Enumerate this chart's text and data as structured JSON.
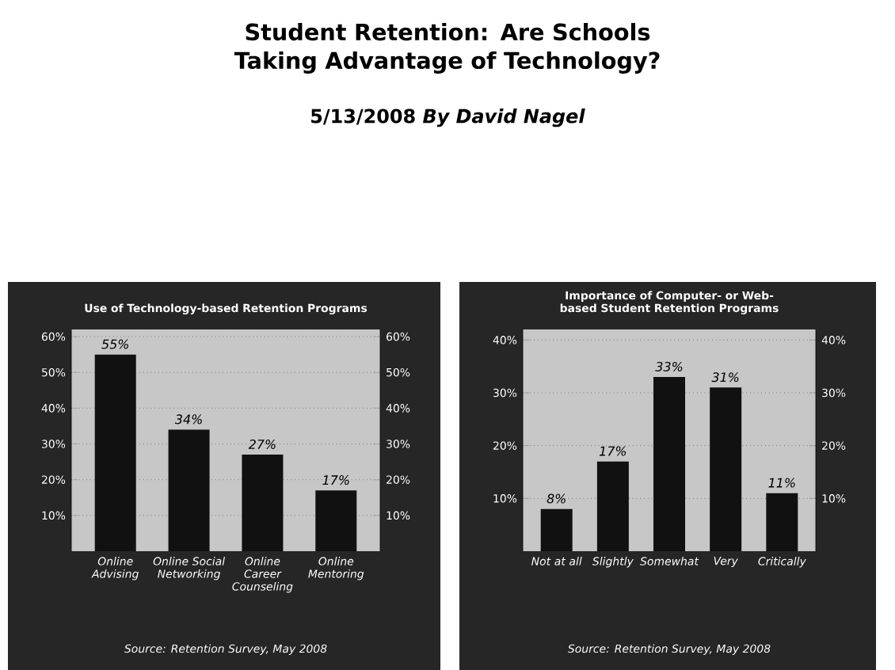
{
  "chart_data": [
    {
      "type": "bar",
      "title": "Use of Technology-based Retention Programs",
      "categories": [
        "Online Advising",
        "Online Social Networking",
        "Online Career Counseling",
        "Online Mentoring"
      ],
      "values": [
        55,
        34,
        27,
        17
      ],
      "value_labels": [
        "55%",
        "34%",
        "27%",
        "17%"
      ],
      "color": "#111111",
      "ylim": [
        0,
        62
      ],
      "yticks": [
        {
          "value": 10,
          "label": "10%"
        },
        {
          "value": 20,
          "label": "20%"
        },
        {
          "value": 30,
          "label": "30%"
        },
        {
          "value": 40,
          "label": "40%"
        },
        {
          "value": 50,
          "label": "50%"
        },
        {
          "value": 60,
          "label": "60%"
        }
      ],
      "y2lim": [
        0,
        62
      ],
      "y2ticks": [
        {
          "value": 10,
          "label": "10%"
        },
        {
          "value": 20,
          "label": "20%"
        },
        {
          "value": 30,
          "label": "30%"
        },
        {
          "value": 40,
          "label": "40%"
        },
        {
          "value": 50,
          "label": "50%"
        },
        {
          "value": 60,
          "label": "60%"
        }
      ],
      "grid": "y",
      "annotations": [
        "Student Retention: Are Schools Taking Advantage of Technology?",
        "5/13/2008 *By David Nagel*",
        "Source: Retention Survey, May 2008"
      ]
    },
    {
      "type": "bar",
      "title": "Importance of Computer- or Web-based Student Retention Programs",
      "categories": [
        "Not at all",
        "Slightly",
        "Somewhat",
        "Very",
        "Critically"
      ],
      "values": [
        8,
        17,
        33,
        31,
        11
      ],
      "value_labels": [
        "8%",
        "17%",
        "33%",
        "31%",
        "11%"
      ],
      "color": "#111111",
      "ylim": [
        0,
        42
      ],
      "yticks": [
        {
          "value": 10,
          "label": "10%"
        },
        {
          "value": 20,
          "label": "20%"
        },
        {
          "value": 30,
          "label": "30%"
        },
        {
          "value": 40,
          "label": "40%"
        }
      ],
      "y2lim": [
        0,
        42
      ],
      "y2ticks": [
        {
          "value": 10,
          "label": "10%"
        },
        {
          "value": 20,
          "label": "20%"
        },
        {
          "value": 30,
          "label": "30%"
        },
        {
          "value": 40,
          "label": "40%"
        }
      ],
      "grid": "y",
      "annotations": [
        "Source: Retention Survey, May 2008"
      ]
    }
  ]
}
